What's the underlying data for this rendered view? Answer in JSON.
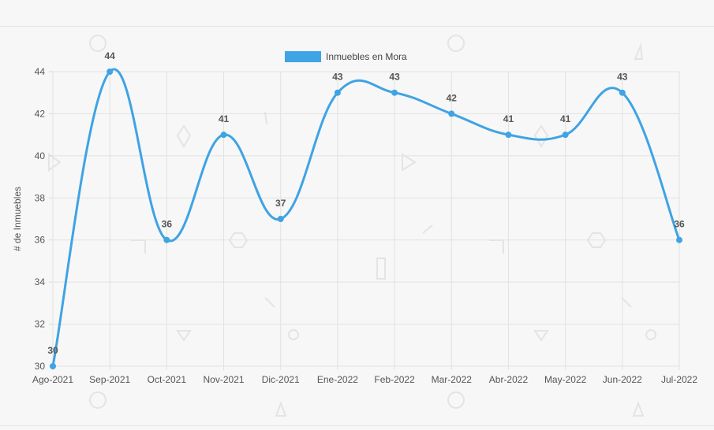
{
  "chart_data": {
    "type": "line",
    "title": "",
    "xlabel": "",
    "ylabel": "# de Inmuebles",
    "categories": [
      "Ago-2021",
      "Sep-2021",
      "Oct-2021",
      "Nov-2021",
      "Dic-2021",
      "Ene-2022",
      "Feb-2022",
      "Mar-2022",
      "Abr-2022",
      "May-2022",
      "Jun-2022",
      "Jul-2022"
    ],
    "series": [
      {
        "name": "Inmuebles en Mora",
        "values": [
          30,
          44,
          36,
          41,
          37,
          43,
          43,
          42,
          41,
          41,
          43,
          36
        ],
        "color": "#3fa3e4"
      }
    ],
    "ylim": [
      30,
      44
    ],
    "yticks": [
      30,
      32,
      34,
      36,
      38,
      40,
      42,
      44
    ],
    "grid": true,
    "legend_position": "top-center",
    "data_labels": true,
    "smooth": true
  }
}
